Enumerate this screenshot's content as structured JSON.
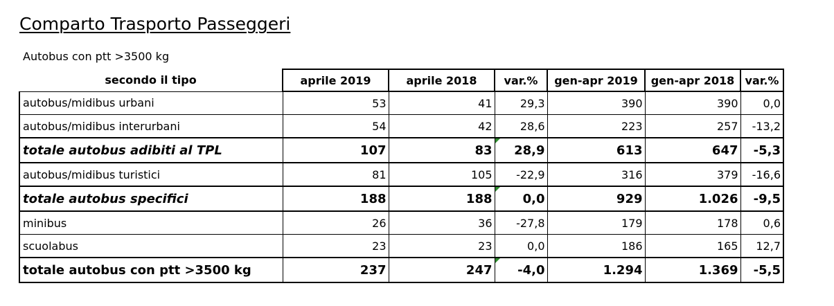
{
  "title": "Comparto Trasporto Passeggeri",
  "subtitle": "Autobus con ptt >3500 kg",
  "table": {
    "row_header": "secondo il tipo",
    "columns": [
      "aprile 2019",
      "aprile 2018",
      "var.%",
      "gen-apr 2019",
      "gen-apr 2018",
      "var.%"
    ],
    "rows": [
      {
        "label": "autobus/midibus urbani",
        "values": [
          "53",
          "41",
          "29,3",
          "390",
          "390",
          "0,0"
        ]
      },
      {
        "label": "autobus/midibus interurbani",
        "values": [
          "54",
          "42",
          "28,6",
          "223",
          "257",
          "-13,2"
        ]
      },
      {
        "label": "totale autobus adibiti al TPL",
        "values": [
          "107",
          "83",
          "28,9",
          "613",
          "647",
          "-5,3"
        ]
      },
      {
        "label": "autobus/midibus turistici",
        "values": [
          "81",
          "105",
          "-22,9",
          "316",
          "379",
          "-16,6"
        ]
      },
      {
        "label": "totale autobus specifici",
        "values": [
          "188",
          "188",
          "0,0",
          "929",
          "1.026",
          "-9,5"
        ]
      },
      {
        "label": "minibus",
        "values": [
          "26",
          "36",
          "-27,8",
          "179",
          "178",
          "0,6"
        ]
      },
      {
        "label": "scuolabus",
        "values": [
          "23",
          "23",
          "0,0",
          "186",
          "165",
          "12,7"
        ]
      },
      {
        "label": "totale autobus con ptt >3500 kg",
        "values": [
          "237",
          "247",
          "-4,0",
          "1.294",
          "1.369",
          "-5,5"
        ]
      }
    ]
  }
}
